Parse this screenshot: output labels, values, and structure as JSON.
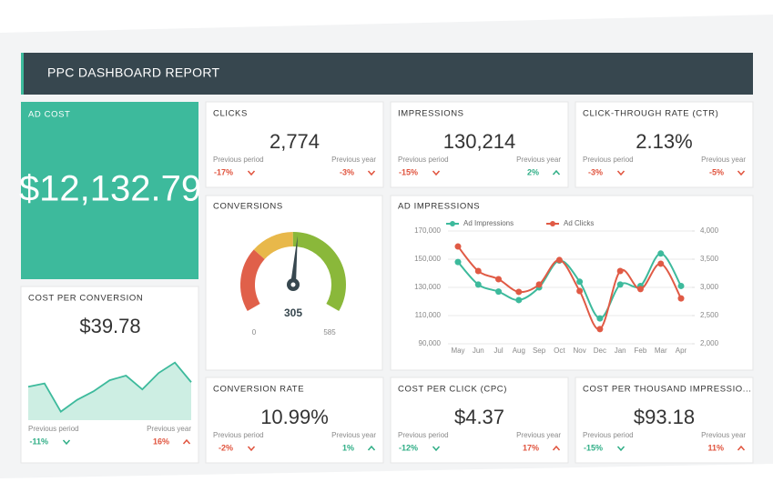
{
  "header": {
    "title": "PPC DASHBOARD REPORT"
  },
  "ad_cost": {
    "label": "AD COST",
    "value": "$12,132.79"
  },
  "kpis": [
    {
      "label": "CLICKS",
      "value": "2,774",
      "period_label": "Previous period",
      "period": "-17%",
      "period_arrow": "down",
      "period_color": "#e0533d",
      "year_label": "Previous year",
      "year": "-3%",
      "year_arrow": "down",
      "year_color": "#e0533d"
    },
    {
      "label": "IMPRESSIONS",
      "value": "130,214",
      "period_label": "Previous period",
      "period": "-15%",
      "period_arrow": "down",
      "period_color": "#e0533d",
      "year_label": "Previous year",
      "year": "2%",
      "year_arrow": "up",
      "year_color": "#2fae86"
    },
    {
      "label": "CLICK-THROUGH RATE (CTR)",
      "value": "2.13%",
      "period_label": "Previous period",
      "period": "-3%",
      "period_arrow": "down",
      "period_color": "#e0533d",
      "year_label": "Previous year",
      "year": "-5%",
      "year_arrow": "down",
      "year_color": "#e0533d"
    },
    {
      "label": "CONVERSION RATE",
      "value": "10.99%",
      "period_label": "Previous period",
      "period": "-2%",
      "period_arrow": "down",
      "period_color": "#e0533d",
      "year_label": "Previous year",
      "year": "1%",
      "year_arrow": "up",
      "year_color": "#2fae86"
    },
    {
      "label": "COST PER CLICK (CPC)",
      "value": "$4.37",
      "period_label": "Previous period",
      "period": "-12%",
      "period_arrow": "down",
      "period_color": "#2fae86",
      "year_label": "Previous year",
      "year": "17%",
      "year_arrow": "up",
      "year_color": "#e0533d"
    },
    {
      "label": "COST PER THOUSAND IMPRESSIO...",
      "value": "$93.18",
      "period_label": "Previous period",
      "period": "-15%",
      "period_arrow": "down",
      "period_color": "#2fae86",
      "year_label": "Previous year",
      "year": "11%",
      "year_arrow": "up",
      "year_color": "#e0533d"
    }
  ],
  "cost_per_conversion": {
    "label": "COST PER CONVERSION",
    "value": "$39.78",
    "period_label": "Previous period",
    "period": "-11%",
    "period_arrow": "down",
    "period_color": "#2fae86",
    "year_label": "Previous year",
    "year": "16%",
    "year_arrow": "up",
    "year_color": "#e0533d",
    "chart_data": {
      "type": "area",
      "values": [
        51,
        56,
        13,
        31,
        44,
        61,
        68,
        47,
        72,
        88,
        58
      ],
      "ylim": [
        0,
        100
      ],
      "color": "#3dba9c"
    }
  },
  "conversions": {
    "label": "CONVERSIONS",
    "chart_data": {
      "type": "gauge",
      "value": 305,
      "min": 0,
      "max": 585,
      "bands": [
        {
          "from": 0,
          "to": 175,
          "color": "#e0604a"
        },
        {
          "from": 175,
          "to": 292,
          "color": "#e8b84a"
        },
        {
          "from": 292,
          "to": 585,
          "color": "#8ab83a"
        }
      ]
    }
  },
  "ad_impressions": {
    "label": "AD IMPRESSIONS",
    "chart_data": {
      "type": "line",
      "categories": [
        "May",
        "Jun",
        "Jul",
        "Aug",
        "Sep",
        "Oct",
        "Nov",
        "Dec",
        "Jan",
        "Feb",
        "Mar",
        "Apr"
      ],
      "series": [
        {
          "name": "Ad Impressions",
          "color": "#3dba9c",
          "values": [
            148000,
            132000,
            127000,
            121000,
            130000,
            149000,
            134000,
            108000,
            132000,
            131000,
            154000,
            131000
          ]
        },
        {
          "name": "Ad Clicks",
          "color": "#e05a45",
          "axis": "y2",
          "values": [
            3725,
            3290,
            3145,
            2920,
            3050,
            3485,
            2935,
            2260,
            3290,
            2970,
            3420,
            2805
          ]
        }
      ],
      "ylim": [
        90000,
        170000
      ],
      "yticks": [
        {
          "value": 90000,
          "label": "90,000"
        },
        {
          "value": 110000,
          "label": "110,000"
        },
        {
          "value": 130000,
          "label": "130,000"
        },
        {
          "value": 150000,
          "label": "150,000"
        },
        {
          "value": 170000,
          "label": "170,000"
        }
      ],
      "y2lim": [
        2000,
        4000
      ],
      "y2ticks": [
        {
          "value": 2000,
          "label": "2,000"
        },
        {
          "value": 2500,
          "label": "2,500"
        },
        {
          "value": 3000,
          "label": "3,000"
        },
        {
          "value": 3500,
          "label": "3,500"
        },
        {
          "value": 4000,
          "label": "4,000"
        }
      ],
      "grid": true,
      "legend": "top"
    }
  }
}
